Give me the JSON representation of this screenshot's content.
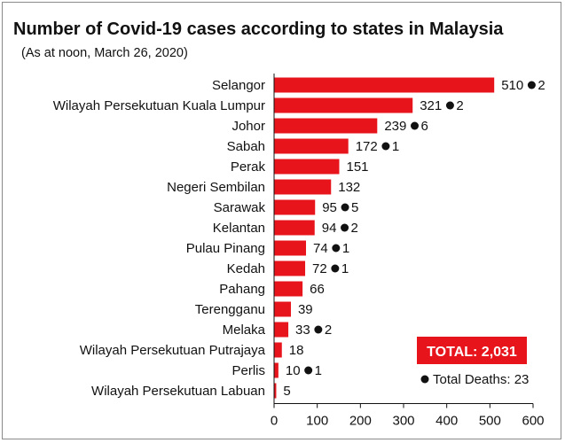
{
  "chart_data": {
    "type": "bar",
    "orientation": "horizontal",
    "title": "Number of Covid-19 cases according to states in Malaysia",
    "subtitle": "(As at noon, March 26, 2020)",
    "categories": [
      "Selangor",
      "Wilayah Persekutuan Kuala Lumpur",
      "Johor",
      "Sabah",
      "Perak",
      "Negeri Sembilan",
      "Sarawak",
      "Kelantan",
      "Pulau Pinang",
      "Kedah",
      "Pahang",
      "Terengganu",
      "Melaka",
      "Wilayah Persekutuan Putrajaya",
      "Perlis",
      "Wilayah Persekutuan Labuan"
    ],
    "values": [
      510,
      321,
      239,
      172,
      151,
      132,
      95,
      94,
      74,
      72,
      66,
      39,
      33,
      18,
      10,
      5
    ],
    "deaths": [
      2,
      2,
      6,
      1,
      null,
      null,
      5,
      2,
      1,
      1,
      null,
      null,
      2,
      null,
      1,
      null
    ],
    "xlim": [
      0,
      600
    ],
    "xticks": [
      0,
      100,
      200,
      300,
      400,
      500,
      600
    ],
    "bar_color": "#e8141c",
    "total_label": "TOTAL: 2,031",
    "deaths_legend": "Total Deaths: 23",
    "grid": false
  }
}
